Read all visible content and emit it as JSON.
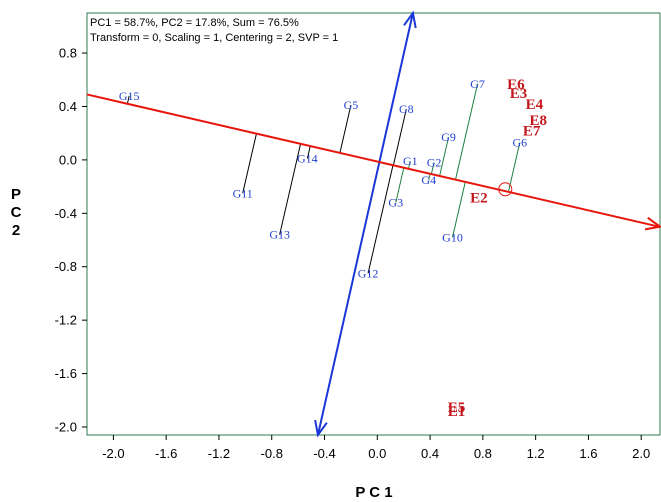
{
  "chart_data": {
    "type": "scatter",
    "title_lines": [
      "PC1 = 58.7%, PC2 = 17.8%, Sum = 76.5%",
      "Transform = 0, Scaling = 1, Centering = 2, SVP = 1"
    ],
    "xlabel": "P C 1",
    "ylabel": [
      "P",
      "C",
      "2"
    ],
    "xlim": [
      -2.2,
      2.15
    ],
    "ylim": [
      -2.06,
      1.1
    ],
    "xticks": [
      "-2.0",
      "-1.6",
      "-1.2",
      "-0.8",
      "-0.4",
      "0.0",
      "0.4",
      "0.8",
      "1.2",
      "1.6",
      "2.0"
    ],
    "xtick_values": [
      -2.0,
      -1.6,
      -1.2,
      -0.8,
      -0.4,
      0.0,
      0.4,
      0.8,
      1.2,
      1.6,
      2.0
    ],
    "yticks": [
      "0.8",
      "0.4",
      "0.0",
      "-0.4",
      "-0.8",
      "-1.2",
      "-1.6",
      "-2.0"
    ],
    "ytick_values": [
      0.8,
      0.4,
      0.0,
      -0.4,
      -0.8,
      -1.2,
      -1.6,
      -2.0
    ],
    "genotypes": [
      {
        "label": "G1",
        "x": 0.25,
        "y": -0.01
      },
      {
        "label": "G2",
        "x": 0.43,
        "y": -0.02
      },
      {
        "label": "G3",
        "x": 0.14,
        "y": -0.32
      },
      {
        "label": "G4",
        "x": 0.39,
        "y": -0.15
      },
      {
        "label": "G5",
        "x": -0.2,
        "y": 0.41
      },
      {
        "label": "G6",
        "x": 1.08,
        "y": 0.13
      },
      {
        "label": "G7",
        "x": 0.76,
        "y": 0.57
      },
      {
        "label": "G8",
        "x": 0.22,
        "y": 0.38
      },
      {
        "label": "G9",
        "x": 0.54,
        "y": 0.17
      },
      {
        "label": "G10",
        "x": 0.57,
        "y": -0.58
      },
      {
        "label": "G11",
        "x": -1.02,
        "y": -0.25
      },
      {
        "label": "G12",
        "x": -0.07,
        "y": -0.85
      },
      {
        "label": "G13",
        "x": -0.74,
        "y": -0.56
      },
      {
        "label": "G14",
        "x": -0.53,
        "y": 0.01
      },
      {
        "label": "G15",
        "x": -1.88,
        "y": 0.48
      }
    ],
    "environments": [
      {
        "label": "E1",
        "x": 0.6,
        "y": -1.88
      },
      {
        "label": "E2",
        "x": 0.77,
        "y": -0.28
      },
      {
        "label": "E3",
        "x": 1.07,
        "y": 0.5
      },
      {
        "label": "E4",
        "x": 1.19,
        "y": 0.42
      },
      {
        "label": "E5",
        "x": 0.6,
        "y": -1.85
      },
      {
        "label": "E6",
        "x": 1.05,
        "y": 0.57
      },
      {
        "label": "E7",
        "x": 1.17,
        "y": 0.22
      },
      {
        "label": "E8",
        "x": 1.22,
        "y": 0.3
      }
    ],
    "average_environment_axis": {
      "from": [
        -2.2,
        0.49
      ],
      "to": [
        2.15,
        -0.5
      ],
      "arrow_at": "to",
      "color": "#e8160c"
    },
    "average_environment_marker": {
      "x": 0.97,
      "y": -0.22
    },
    "ordinate_axis": {
      "from": [
        -0.45,
        -2.06
      ],
      "to": [
        0.27,
        1.1
      ],
      "arrows": "both",
      "color": "#1a37d8"
    },
    "projections": [
      {
        "genotype": "G15",
        "color": "#000000"
      },
      {
        "genotype": "G11",
        "color": "#000000"
      },
      {
        "genotype": "G13",
        "color": "#000000"
      },
      {
        "genotype": "G14",
        "color": "#000000"
      },
      {
        "genotype": "G5",
        "color": "#000000"
      },
      {
        "genotype": "G12",
        "color": "#000000"
      },
      {
        "genotype": "G8",
        "color": "#000000"
      },
      {
        "genotype": "G1",
        "color": "#1b7f3e"
      },
      {
        "genotype": "G2",
        "color": "#1b7f3e"
      },
      {
        "genotype": "G3",
        "color": "#1b7f3e"
      },
      {
        "genotype": "G4",
        "color": "#1b7f3e"
      },
      {
        "genotype": "G9",
        "color": "#1b7f3e"
      },
      {
        "genotype": "G7",
        "color": "#1b7f3e"
      },
      {
        "genotype": "G10",
        "color": "#1b7f3e"
      },
      {
        "genotype": "G6",
        "color": "#1b7f3e"
      }
    ],
    "colors": {
      "genotype": "#1f3fd0",
      "environment": "#c4161c",
      "frame": "#2e7d4f",
      "text": "#000000"
    },
    "grid": false,
    "legend": "none"
  }
}
